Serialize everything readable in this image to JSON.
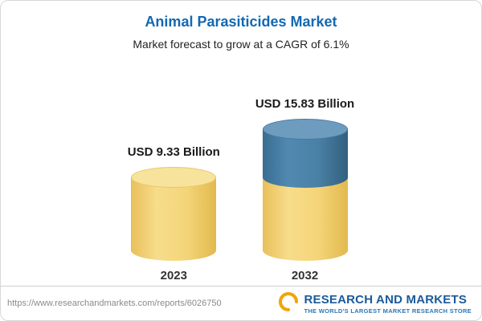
{
  "header": {
    "title": "Animal Parasiticides Market",
    "subtitle": "Market forecast to grow at a CAGR of 6.1%"
  },
  "chart_data": {
    "type": "bar",
    "categories": [
      "2023",
      "2032"
    ],
    "values": [
      9.33,
      15.83
    ],
    "value_labels": [
      "USD 9.33 Billion",
      "USD 15.83 Billion"
    ],
    "unit": "USD Billion",
    "title": "Animal Parasiticides Market",
    "subtitle": "Market forecast to grow at a CAGR of 6.1%",
    "legend_position": "none",
    "grid": false,
    "colors": {
      "base": "#F0CC62",
      "growth": "#3D7BA8"
    }
  },
  "footer": {
    "url": "https://www.researchandmarkets.com/reports/6026750",
    "logo_text": "RESEARCH AND MARKETS",
    "tagline": "THE WORLD'S LARGEST MARKET RESEARCH STORE"
  }
}
